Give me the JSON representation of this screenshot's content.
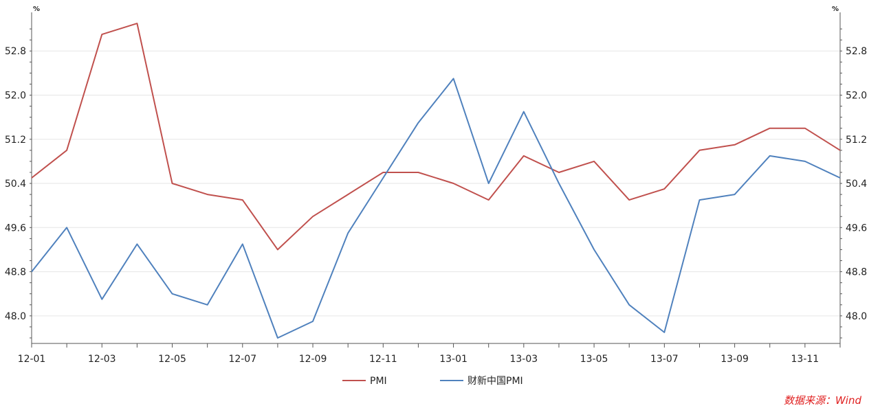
{
  "chart_data": {
    "type": "line",
    "title": "",
    "y_unit_left": "%",
    "y_unit_right": "%",
    "ylim": [
      47.5,
      53.5
    ],
    "y_ticks": [
      "48.0",
      "48.8",
      "49.6",
      "50.4",
      "51.2",
      "52.0",
      "52.8"
    ],
    "x": [
      "12-01",
      "12-02",
      "12-03",
      "12-04",
      "12-05",
      "12-06",
      "12-07",
      "12-08",
      "12-09",
      "12-10",
      "12-11",
      "12-12",
      "13-01",
      "13-02",
      "13-03",
      "13-04",
      "13-05",
      "13-06",
      "13-07",
      "13-08",
      "13-09",
      "13-10",
      "13-11",
      "13-12"
    ],
    "x_tick_labels": [
      "12-01",
      "12-03",
      "12-05",
      "12-07",
      "12-09",
      "12-11",
      "13-01",
      "13-03",
      "13-05",
      "13-07",
      "13-09",
      "13-11"
    ],
    "series": [
      {
        "name": "PMI",
        "color": "#c0504d",
        "values": [
          50.5,
          51.0,
          53.1,
          53.3,
          50.4,
          50.2,
          50.1,
          49.2,
          49.8,
          50.2,
          50.6,
          50.6,
          50.4,
          50.1,
          50.9,
          50.6,
          50.8,
          50.1,
          50.3,
          51.0,
          51.1,
          51.4,
          51.4,
          51.0
        ]
      },
      {
        "name": "财新中国PMI",
        "color": "#4f81bd",
        "values": [
          48.8,
          49.6,
          48.3,
          49.3,
          48.4,
          48.2,
          49.3,
          47.6,
          47.9,
          49.5,
          50.5,
          51.5,
          52.3,
          50.4,
          51.7,
          50.4,
          49.2,
          48.2,
          47.7,
          50.1,
          50.2,
          50.9,
          50.8,
          50.5
        ]
      }
    ],
    "grid": true,
    "legend_position": "bottom"
  },
  "source": "数据来源：Wind"
}
